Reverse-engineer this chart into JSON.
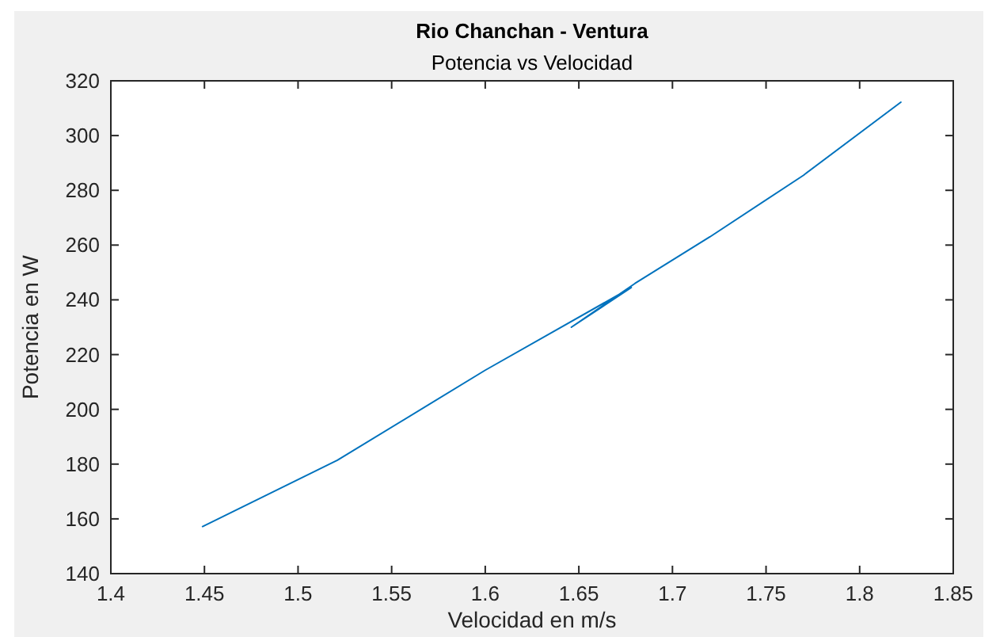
{
  "chart_data": {
    "type": "line",
    "title": "Rio Chanchan - Ventura",
    "subtitle": "Potencia vs Velocidad",
    "xlabel": "Velocidad en m/s",
    "ylabel": "Potencia en W",
    "x": [
      1.449,
      1.521,
      1.6,
      1.678,
      1.646,
      1.68,
      1.72,
      1.77,
      1.822
    ],
    "series": [
      {
        "color": "#0072bd",
        "values": [
          157.2,
          181.4,
          214.3,
          244.5,
          230,
          246,
          263,
          285.5,
          312.2
        ]
      }
    ],
    "xlim": [
      1.4,
      1.85
    ],
    "ylim": [
      140,
      320
    ],
    "xticks": [
      1.4,
      1.45,
      1.5,
      1.55,
      1.6,
      1.65,
      1.7,
      1.75,
      1.8,
      1.85
    ],
    "yticks": [
      140,
      160,
      180,
      200,
      220,
      240,
      260,
      280,
      300,
      320
    ]
  }
}
